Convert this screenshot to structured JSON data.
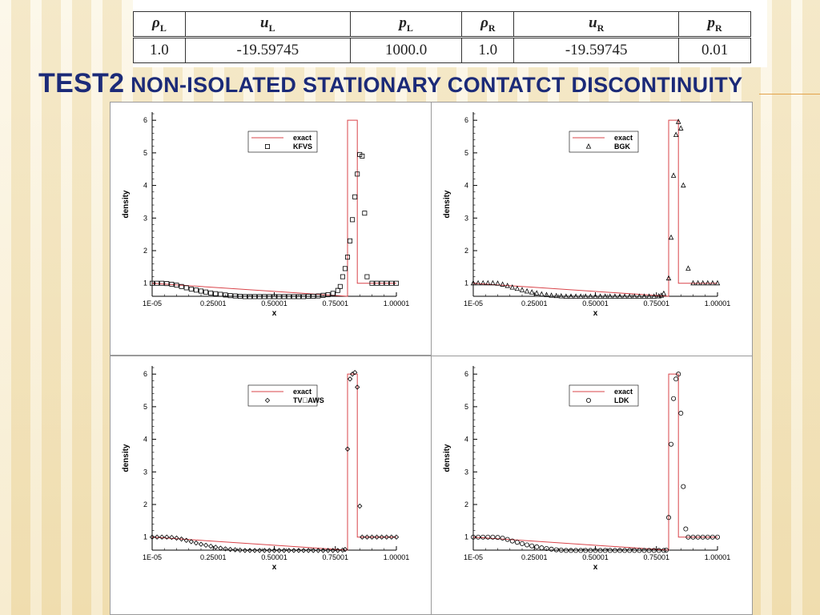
{
  "table": {
    "headers": [
      "ρL",
      "uL",
      "pL",
      "ρR",
      "uR",
      "pR"
    ],
    "rows": [
      [
        "1.0",
        "-19.59745",
        "1000.0",
        "1.0",
        "-19.59745",
        "0.01"
      ]
    ]
  },
  "title": {
    "main": "TEST2",
    "sub": " NON-ISOLATED STATIONARY CONTATCT DISCONTINUITY"
  },
  "chart_data": [
    {
      "type": "scatter",
      "xlabel": "x",
      "ylabel": "density",
      "x_ticks": [
        "1E-05",
        "0.25001",
        "0.50001",
        "0.75001",
        "1.00001"
      ],
      "y_ticks": [
        "1",
        "2",
        "3",
        "4",
        "5",
        "6"
      ],
      "xlim": [
        0.0,
        1.0
      ],
      "ylim": [
        0.6,
        6.0
      ],
      "legend_placement": "top-center",
      "series": [
        {
          "name": "exact",
          "style": "line",
          "x": [
            0.0,
            0.8,
            0.8,
            0.84,
            0.84,
            1.0
          ],
          "y": [
            1.0,
            0.6,
            6.0,
            6.0,
            1.0,
            1.0
          ]
        },
        {
          "name": "KFVS",
          "style": "square",
          "x": [
            0.0,
            0.02,
            0.04,
            0.06,
            0.08,
            0.1,
            0.12,
            0.14,
            0.16,
            0.18,
            0.2,
            0.22,
            0.24,
            0.26,
            0.28,
            0.3,
            0.32,
            0.34,
            0.36,
            0.38,
            0.4,
            0.42,
            0.44,
            0.46,
            0.48,
            0.5,
            0.52,
            0.54,
            0.56,
            0.58,
            0.6,
            0.62,
            0.64,
            0.66,
            0.68,
            0.7,
            0.72,
            0.74,
            0.76,
            0.77,
            0.78,
            0.79,
            0.8,
            0.81,
            0.82,
            0.83,
            0.84,
            0.85,
            0.86,
            0.87,
            0.88,
            0.9,
            0.92,
            0.94,
            0.96,
            0.98,
            1.0
          ],
          "y": [
            1.0,
            1.0,
            1.0,
            0.99,
            0.97,
            0.94,
            0.9,
            0.86,
            0.82,
            0.79,
            0.76,
            0.73,
            0.7,
            0.68,
            0.66,
            0.64,
            0.62,
            0.61,
            0.6,
            0.59,
            0.59,
            0.59,
            0.59,
            0.59,
            0.59,
            0.59,
            0.59,
            0.59,
            0.59,
            0.59,
            0.59,
            0.59,
            0.6,
            0.6,
            0.61,
            0.63,
            0.65,
            0.69,
            0.78,
            0.9,
            1.2,
            1.45,
            1.8,
            2.3,
            2.95,
            3.65,
            4.35,
            4.95,
            4.9,
            3.15,
            1.2,
            1.0,
            1.0,
            1.0,
            1.0,
            1.0,
            1.0
          ]
        },
        {
          "name": "BGK",
          "style": "triangle",
          "x": [
            0.0,
            0.02,
            0.04,
            0.06,
            0.08,
            0.1,
            0.12,
            0.14,
            0.16,
            0.18,
            0.2,
            0.22,
            0.24,
            0.26,
            0.28,
            0.3,
            0.32,
            0.34,
            0.36,
            0.38,
            0.4,
            0.42,
            0.44,
            0.46,
            0.48,
            0.5,
            0.52,
            0.54,
            0.56,
            0.58,
            0.6,
            0.62,
            0.64,
            0.66,
            0.68,
            0.7,
            0.72,
            0.74,
            0.76,
            0.77,
            0.78,
            0.8,
            0.81,
            0.82,
            0.83,
            0.84,
            0.85,
            0.86,
            0.88,
            0.9,
            0.92,
            0.94,
            0.96,
            0.98,
            1.0
          ],
          "y": [
            1.0,
            1.0,
            1.0,
            1.0,
            1.0,
            0.99,
            0.96,
            0.92,
            0.87,
            0.83,
            0.79,
            0.75,
            0.72,
            0.69,
            0.66,
            0.64,
            0.62,
            0.61,
            0.6,
            0.59,
            0.59,
            0.59,
            0.59,
            0.59,
            0.59,
            0.59,
            0.59,
            0.59,
            0.59,
            0.59,
            0.59,
            0.59,
            0.59,
            0.59,
            0.59,
            0.59,
            0.59,
            0.59,
            0.6,
            0.62,
            0.68,
            1.15,
            2.4,
            4.3,
            5.55,
            5.95,
            5.75,
            4.0,
            1.45,
            1.0,
            1.0,
            1.0,
            1.0,
            1.0,
            1.0
          ]
        },
        {
          "name": "TV\u0000AWS",
          "style": "diamond",
          "x": [
            0.0,
            0.02,
            0.04,
            0.06,
            0.08,
            0.1,
            0.12,
            0.14,
            0.16,
            0.18,
            0.2,
            0.22,
            0.24,
            0.26,
            0.28,
            0.3,
            0.32,
            0.34,
            0.36,
            0.38,
            0.4,
            0.42,
            0.44,
            0.46,
            0.48,
            0.5,
            0.52,
            0.54,
            0.56,
            0.58,
            0.6,
            0.62,
            0.64,
            0.66,
            0.68,
            0.7,
            0.72,
            0.74,
            0.76,
            0.78,
            0.79,
            0.8,
            0.81,
            0.82,
            0.83,
            0.84,
            0.85,
            0.86,
            0.88,
            0.9,
            0.92,
            0.94,
            0.96,
            0.98,
            1.0
          ],
          "y": [
            1.0,
            1.0,
            1.0,
            1.0,
            0.99,
            0.97,
            0.94,
            0.9,
            0.86,
            0.82,
            0.78,
            0.75,
            0.72,
            0.69,
            0.66,
            0.64,
            0.62,
            0.61,
            0.6,
            0.59,
            0.59,
            0.59,
            0.59,
            0.59,
            0.59,
            0.59,
            0.59,
            0.59,
            0.59,
            0.59,
            0.59,
            0.59,
            0.59,
            0.59,
            0.59,
            0.59,
            0.59,
            0.59,
            0.59,
            0.6,
            0.62,
            3.7,
            5.85,
            6.0,
            6.05,
            5.6,
            1.95,
            1.0,
            1.0,
            1.0,
            1.0,
            1.0,
            1.0,
            1.0,
            1.0
          ]
        },
        {
          "name": "LDK",
          "style": "circle",
          "x": [
            0.0,
            0.02,
            0.04,
            0.06,
            0.08,
            0.1,
            0.12,
            0.14,
            0.16,
            0.18,
            0.2,
            0.22,
            0.24,
            0.26,
            0.28,
            0.3,
            0.32,
            0.34,
            0.36,
            0.38,
            0.4,
            0.42,
            0.44,
            0.46,
            0.48,
            0.5,
            0.52,
            0.54,
            0.56,
            0.58,
            0.6,
            0.62,
            0.64,
            0.66,
            0.68,
            0.7,
            0.72,
            0.74,
            0.76,
            0.78,
            0.79,
            0.8,
            0.81,
            0.82,
            0.83,
            0.84,
            0.85,
            0.86,
            0.87,
            0.88,
            0.9,
            0.92,
            0.94,
            0.96,
            0.98,
            1.0
          ],
          "y": [
            1.0,
            1.0,
            1.0,
            1.0,
            1.0,
            0.99,
            0.97,
            0.93,
            0.88,
            0.84,
            0.8,
            0.76,
            0.73,
            0.7,
            0.67,
            0.65,
            0.63,
            0.61,
            0.6,
            0.59,
            0.59,
            0.59,
            0.59,
            0.59,
            0.59,
            0.59,
            0.59,
            0.59,
            0.59,
            0.59,
            0.59,
            0.59,
            0.59,
            0.59,
            0.59,
            0.59,
            0.59,
            0.59,
            0.59,
            0.59,
            0.6,
            1.6,
            3.85,
            5.25,
            5.85,
            6.0,
            4.8,
            2.55,
            1.25,
            1.0,
            1.0,
            1.0,
            1.0,
            1.0,
            1.0,
            1.0
          ]
        }
      ]
    }
  ],
  "panels": [
    {
      "legend": [
        "exact",
        "KFVS"
      ]
    },
    {
      "legend": [
        "exact",
        "BGK"
      ]
    },
    {
      "legend": [
        "exact",
        "TV\u0000AWS"
      ]
    },
    {
      "legend": [
        "exact",
        "LDK"
      ]
    }
  ],
  "colors": {
    "exact_line": "#d9444a",
    "title": "#1b2a78",
    "markers": "#000000"
  }
}
